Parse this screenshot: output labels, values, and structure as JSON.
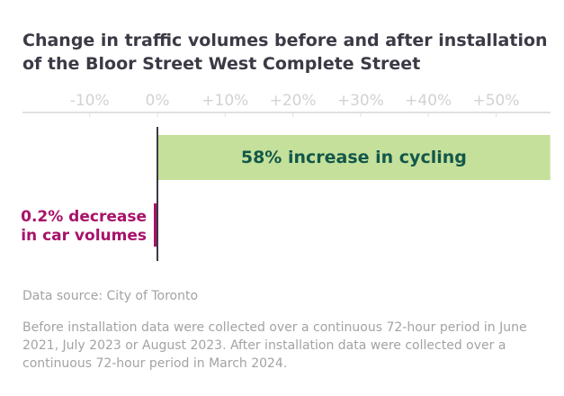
{
  "chart_data": {
    "type": "bar",
    "orientation": "horizontal",
    "title": "Change in traffic volumes before and after installation of the Bloor Street West Complete Street",
    "xlim": [
      -10,
      58
    ],
    "ticks": [
      -10,
      0,
      10,
      20,
      30,
      40,
      50
    ],
    "tick_labels": [
      "-10%",
      "0%",
      "+10%",
      "+20%",
      "+30%",
      "+40%",
      "+50%"
    ],
    "categories": [
      "Cycling",
      "Car volumes"
    ],
    "values": [
      58,
      -0.2
    ],
    "data_labels": [
      "58% increase in cycling",
      "0.2% decrease\nin car volumes"
    ],
    "data_label_lines": [
      [
        "58% increase in cycling"
      ],
      [
        "0.2% decrease",
        "in car volumes"
      ]
    ],
    "colors": [
      "#c5e09a",
      "#a8126a"
    ],
    "label_colors": [
      "#12574a",
      "#a8126a"
    ]
  },
  "footer": {
    "source": "Data source: City of Toronto",
    "note": "Before installation data were collected over a continuous 72-hour period in June 2021, July 2023 or August 2023. After installation data were collected over a continuous 72-hour period in March 2024."
  }
}
